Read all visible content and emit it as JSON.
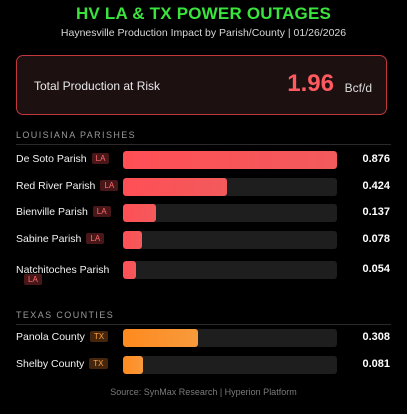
{
  "title": "HV LA & TX POWER OUTAGES",
  "subtitle": "Haynesville Production Impact by Parish/County | 01/26/2026",
  "total": {
    "label": "Total Production at Risk",
    "value": "1.96",
    "unit": "Bcf/d"
  },
  "colors": {
    "title": "#39e43c",
    "louisiana": "#ff4f55",
    "texas": "#ff8a1e",
    "track": "#1e1e1e"
  },
  "chart_data": {
    "type": "bar",
    "orientation": "horizontal",
    "xlim": [
      0,
      0.876
    ],
    "groups": [
      {
        "name": "LOUISIANA PARISHES",
        "badge": "LA",
        "categories": [
          "De Soto Parish",
          "Red River Parish",
          "Bienville Parish",
          "Sabine Parish",
          "Natchitoches Parish"
        ],
        "values": [
          0.876,
          0.424,
          0.137,
          0.078,
          0.054
        ],
        "labels": [
          "0.876",
          "0.424",
          "0.137",
          "0.078",
          "0.054"
        ]
      },
      {
        "name": "TEXAS COUNTIES",
        "badge": "TX",
        "categories": [
          "Panola County",
          "Shelby County"
        ],
        "values": [
          0.308,
          0.081
        ],
        "labels": [
          "0.308",
          "0.081"
        ]
      }
    ]
  },
  "footer": "Source: SynMax Research | Hyperion Platform"
}
